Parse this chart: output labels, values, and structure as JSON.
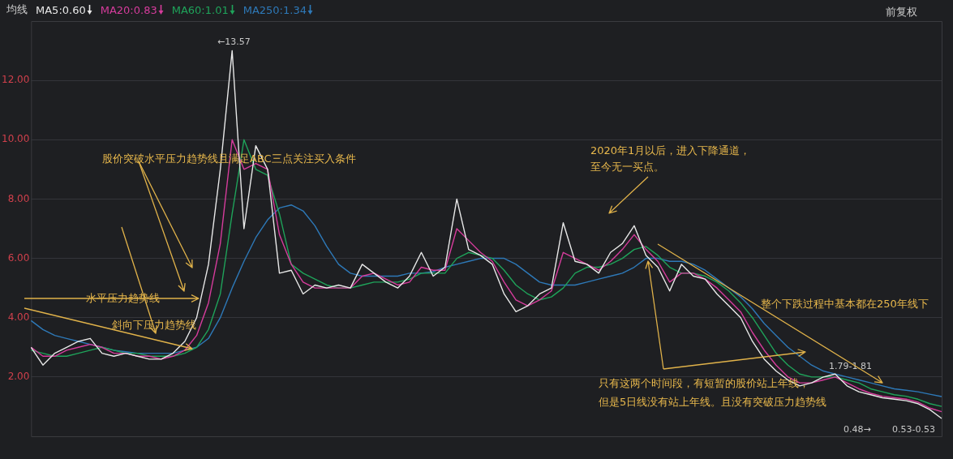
{
  "chart_data": {
    "type": "line",
    "legend_title": "均线",
    "categories": [
      null,
      null,
      null,
      null,
      null,
      null,
      null,
      null,
      null,
      null,
      null,
      null,
      null,
      null,
      null,
      null,
      null,
      null,
      null,
      null,
      null,
      null,
      null,
      null,
      null,
      null,
      null,
      null,
      null,
      null,
      null,
      null,
      null,
      null,
      null,
      null,
      null,
      null,
      null,
      null,
      null,
      null,
      null,
      null,
      null,
      null,
      null,
      null,
      null,
      null,
      null,
      null,
      null,
      null,
      null,
      null,
      null,
      null,
      null,
      null,
      null,
      null,
      null,
      null,
      null,
      null,
      null,
      null,
      null,
      null,
      null,
      null,
      null,
      null,
      null,
      null,
      null,
      null
    ],
    "series": [
      {
        "name": "MA5:0.60",
        "color": "#e8e8e8",
        "values": [
          3.0,
          2.4,
          2.8,
          3.0,
          3.2,
          3.3,
          2.8,
          2.7,
          2.8,
          2.7,
          2.6,
          2.6,
          2.8,
          3.2,
          4.0,
          5.8,
          9.0,
          13.0,
          7.0,
          9.8,
          9.0,
          5.5,
          5.6,
          4.8,
          5.1,
          5.0,
          5.1,
          5.0,
          5.8,
          5.5,
          5.2,
          5.0,
          5.4,
          6.2,
          5.4,
          5.7,
          8.0,
          6.3,
          6.1,
          5.8,
          4.8,
          4.2,
          4.4,
          4.8,
          5.0,
          7.2,
          5.9,
          5.8,
          5.5,
          6.2,
          6.5,
          7.1,
          6.1,
          5.7,
          4.9,
          5.8,
          5.4,
          5.3,
          4.8,
          4.4,
          4.0,
          3.2,
          2.6,
          2.2,
          1.9,
          1.7,
          1.8,
          2.0,
          2.1,
          1.7,
          1.5,
          1.4,
          1.3,
          1.25,
          1.2,
          1.1,
          0.9,
          0.6
        ]
      },
      {
        "name": "MA20:0.83",
        "color": "#d63c9c",
        "values": [
          3.0,
          2.7,
          2.7,
          2.9,
          3.0,
          3.1,
          3.0,
          2.8,
          2.8,
          2.7,
          2.7,
          2.6,
          2.7,
          2.9,
          3.4,
          4.5,
          6.5,
          10.0,
          9.0,
          9.2,
          9.0,
          6.8,
          5.8,
          5.2,
          5.0,
          5.0,
          5.0,
          5.0,
          5.4,
          5.5,
          5.3,
          5.1,
          5.2,
          5.7,
          5.6,
          5.6,
          7.0,
          6.6,
          6.2,
          5.9,
          5.2,
          4.6,
          4.4,
          4.6,
          4.9,
          6.2,
          6.0,
          5.8,
          5.6,
          5.9,
          6.3,
          6.8,
          6.3,
          5.9,
          5.2,
          5.5,
          5.5,
          5.3,
          5.0,
          4.6,
          4.2,
          3.5,
          2.9,
          2.4,
          2.0,
          1.8,
          1.8,
          1.9,
          2.0,
          1.8,
          1.6,
          1.45,
          1.35,
          1.3,
          1.25,
          1.15,
          0.95,
          0.83
        ]
      },
      {
        "name": "MA60:1.01",
        "color": "#1fa35a",
        "values": [
          2.9,
          2.8,
          2.7,
          2.7,
          2.8,
          2.9,
          3.0,
          2.9,
          2.8,
          2.8,
          2.7,
          2.7,
          2.7,
          2.8,
          3.0,
          3.6,
          4.8,
          7.5,
          10.0,
          9.0,
          8.8,
          7.5,
          5.8,
          5.5,
          5.3,
          5.1,
          5.0,
          5.0,
          5.1,
          5.2,
          5.2,
          5.2,
          5.3,
          5.5,
          5.5,
          5.5,
          6.0,
          6.2,
          6.1,
          6.0,
          5.6,
          5.1,
          4.8,
          4.6,
          4.7,
          5.0,
          5.5,
          5.7,
          5.7,
          5.8,
          6.0,
          6.3,
          6.4,
          6.1,
          5.7,
          5.5,
          5.5,
          5.4,
          5.2,
          4.9,
          4.5,
          4.0,
          3.4,
          2.8,
          2.4,
          2.1,
          2.0,
          2.0,
          2.0,
          1.9,
          1.8,
          1.6,
          1.5,
          1.4,
          1.35,
          1.25,
          1.1,
          1.01
        ]
      },
      {
        "name": "MA250:1.34",
        "color": "#2e79b8",
        "values": [
          3.9,
          3.6,
          3.4,
          3.3,
          3.2,
          3.1,
          3.0,
          2.9,
          2.85,
          2.8,
          2.8,
          2.8,
          2.8,
          2.9,
          3.0,
          3.3,
          4.0,
          5.0,
          5.9,
          6.7,
          7.3,
          7.7,
          7.8,
          7.6,
          7.1,
          6.4,
          5.8,
          5.5,
          5.4,
          5.4,
          5.4,
          5.4,
          5.5,
          5.5,
          5.55,
          5.7,
          5.8,
          5.9,
          6.0,
          6.0,
          6.0,
          5.8,
          5.5,
          5.2,
          5.1,
          5.1,
          5.1,
          5.2,
          5.3,
          5.4,
          5.5,
          5.7,
          6.0,
          6.0,
          5.9,
          5.9,
          5.8,
          5.6,
          5.3,
          5.0,
          4.7,
          4.3,
          3.8,
          3.4,
          3.0,
          2.7,
          2.4,
          2.2,
          2.1,
          2.0,
          1.9,
          1.8,
          1.7,
          1.6,
          1.55,
          1.5,
          1.42,
          1.34
        ]
      }
    ],
    "ylim": [
      0,
      14
    ],
    "yticks": [
      {
        "value": 2,
        "label": "2.00"
      },
      {
        "value": 4,
        "label": "4.00"
      },
      {
        "value": 6,
        "label": "6.00"
      },
      {
        "value": 8,
        "label": "8.00"
      },
      {
        "value": 10,
        "label": "10.00"
      },
      {
        "value": 12,
        "label": "12.00"
      }
    ],
    "grid": "y",
    "tick_labels": "y",
    "marker": "none",
    "legend": "top left",
    "annotations": [
      "股价突破水平压力趋势线且满足ABC三点关注买入条件",
      "水平压力趋势线",
      "斜向下压力趋势线",
      "2020年1月以后，进入下降通道，",
      "至今无一买点。",
      "整个下跌过程中基本都在250年线下",
      "只有这两个时间段，有短暂的股价站上年线，",
      "但是5日线没有站上年线。且没有突破压力趋势线",
      "←13.57",
      "1.79-1.81",
      "0.53-0.53",
      "0.48→",
      "前复权"
    ]
  }
}
